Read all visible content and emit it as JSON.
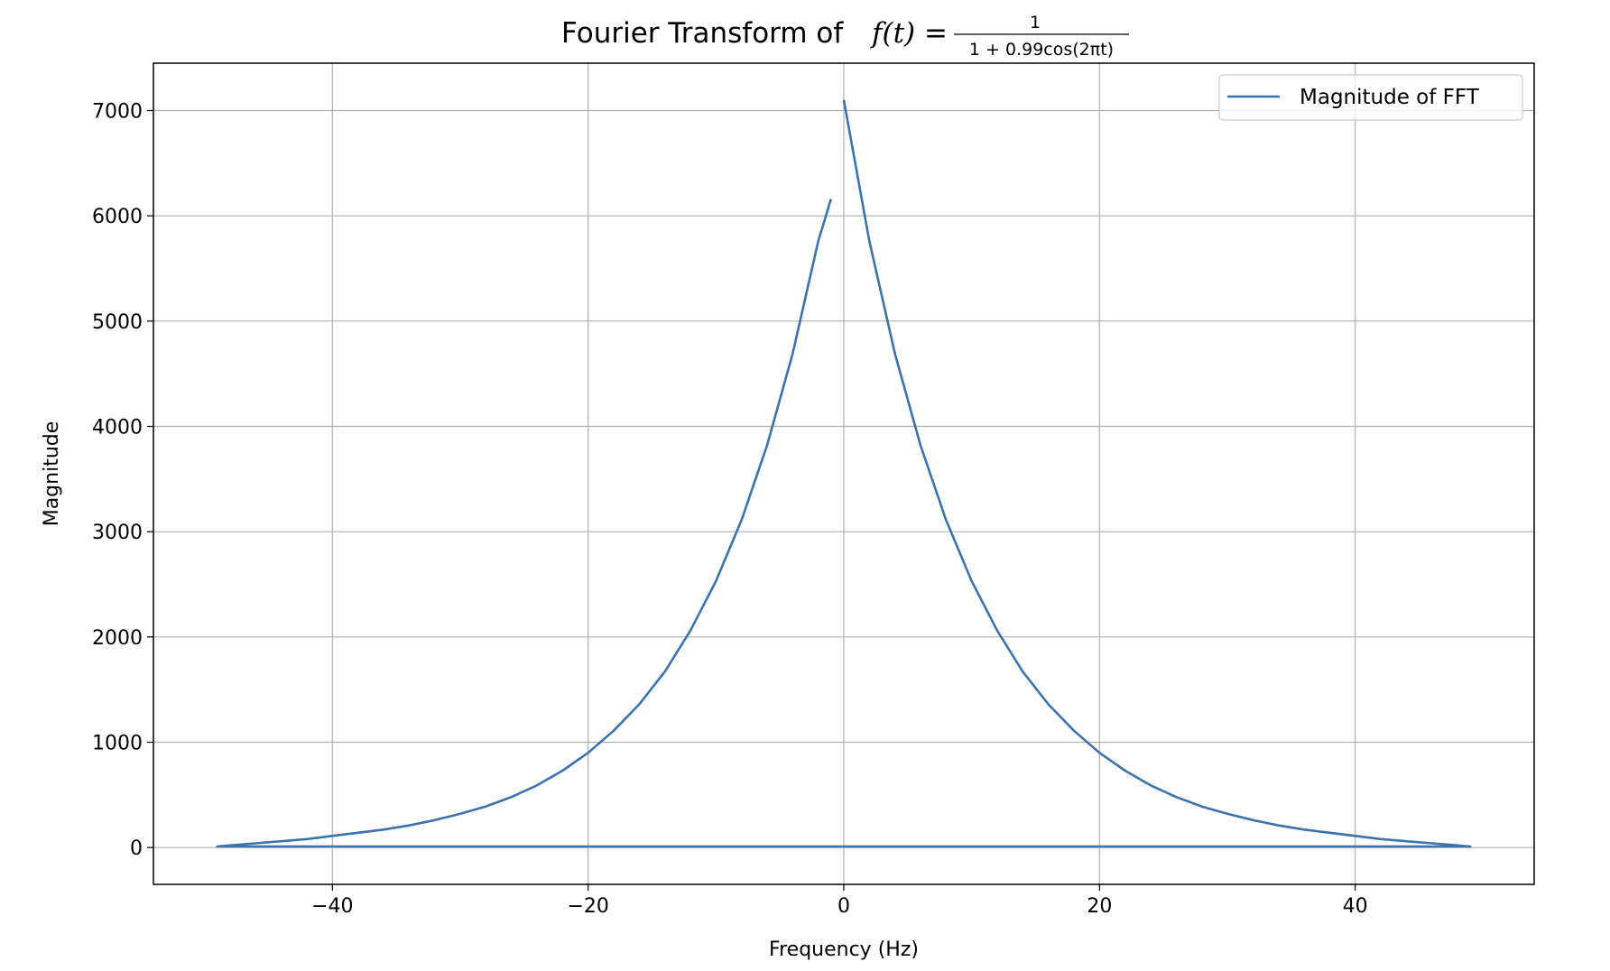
{
  "chart_data": {
    "type": "line",
    "title": {
      "prefix": "Fourier Transform of ",
      "lhs": "f(t)",
      "equals": "=",
      "numerator": "1",
      "denominator": "1 + 0.99cos(2πt)"
    },
    "xlabel": "Frequency (Hz)",
    "ylabel": "Magnitude",
    "xlim": [
      -54,
      54
    ],
    "ylim": [
      -350,
      7450
    ],
    "xticks": [
      -40,
      -20,
      0,
      20,
      40
    ],
    "xtick_labels": [
      "−40",
      "−20",
      "0",
      "20",
      "40"
    ],
    "yticks": [
      0,
      1000,
      2000,
      3000,
      4000,
      5000,
      6000,
      7000
    ],
    "ytick_labels": [
      "0",
      "1000",
      "2000",
      "3000",
      "4000",
      "5000",
      "6000",
      "7000"
    ],
    "grid": true,
    "legend": {
      "placement": "top-right"
    },
    "series": [
      {
        "name": "Magnitude of FFT",
        "color": "#3a73ad",
        "x": [
          0,
          2,
          4,
          6,
          8,
          10,
          12,
          14,
          16,
          18,
          20,
          22,
          24,
          26,
          28,
          30,
          32,
          34,
          36,
          38,
          40,
          42,
          44,
          46,
          48,
          49,
          -49,
          -48,
          -46,
          -44,
          -42,
          -40,
          -38,
          -36,
          -34,
          -32,
          -30,
          -28,
          -26,
          -24,
          -22,
          -20,
          -18,
          -16,
          -14,
          -12,
          -10,
          -8,
          -6,
          -4,
          -2,
          -1
        ],
        "y": [
          7100,
          5760,
          4690,
          3820,
          3110,
          2530,
          2060,
          1670,
          1360,
          1110,
          900,
          730,
          590,
          480,
          390,
          320,
          260,
          210,
          170,
          140,
          110,
          80,
          60,
          40,
          20,
          10,
          10,
          20,
          40,
          60,
          80,
          110,
          140,
          170,
          210,
          260,
          320,
          390,
          480,
          590,
          730,
          900,
          1110,
          1360,
          1670,
          2060,
          2530,
          3110,
          3820,
          4690,
          5760,
          6160
        ]
      }
    ]
  }
}
